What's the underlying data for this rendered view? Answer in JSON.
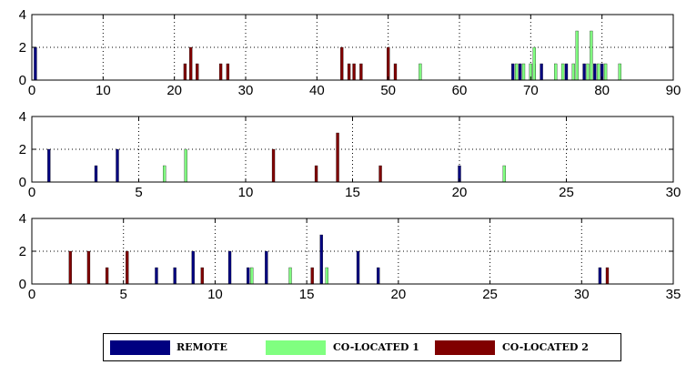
{
  "colors": {
    "remote": "#000080",
    "colocated1": "#80ff80",
    "colocated2": "#800000"
  },
  "legend": {
    "placement": "bottom-center",
    "items": [
      {
        "label": "REMOTE",
        "color": "#000080"
      },
      {
        "label": "CO-LOCATED 1",
        "color": "#80ff80"
      },
      {
        "label": "CO-LOCATED 2",
        "color": "#800000"
      }
    ]
  },
  "chart_data": [
    {
      "type": "bar",
      "xlim": [
        0,
        90
      ],
      "ylim": [
        0,
        4
      ],
      "xticks": [
        0,
        10,
        20,
        30,
        40,
        50,
        60,
        70,
        80,
        90
      ],
      "yticks": [
        0,
        2,
        4
      ],
      "grid": true,
      "series": [
        {
          "name": "REMOTE",
          "color": "#000080",
          "points": [
            [
              0.5,
              2
            ],
            [
              67.5,
              1
            ],
            [
              68.5,
              1
            ],
            [
              70.5,
              1
            ],
            [
              71.5,
              1
            ],
            [
              75,
              1
            ],
            [
              77.5,
              1
            ],
            [
              79,
              1
            ],
            [
              80,
              1
            ]
          ]
        },
        {
          "name": "CO-LOCATED 1",
          "color": "#80ff80",
          "points": [
            [
              54.5,
              1
            ],
            [
              68,
              1
            ],
            [
              69,
              1
            ],
            [
              70,
              1
            ],
            [
              70.5,
              2
            ],
            [
              73.5,
              1
            ],
            [
              74.5,
              1
            ],
            [
              76,
              1
            ],
            [
              76.5,
              3
            ],
            [
              78,
              1
            ],
            [
              78.5,
              3
            ],
            [
              79.5,
              1
            ],
            [
              80.5,
              1
            ],
            [
              82.5,
              1
            ]
          ]
        },
        {
          "name": "CO-LOCATED 2",
          "color": "#800000",
          "points": [
            [
              21.5,
              1
            ],
            [
              22.3,
              2
            ],
            [
              23.2,
              1
            ],
            [
              26.5,
              1
            ],
            [
              27.5,
              1
            ],
            [
              43.5,
              2
            ],
            [
              44.5,
              1
            ],
            [
              45.2,
              1
            ],
            [
              46.2,
              1
            ],
            [
              50,
              2
            ],
            [
              51,
              1
            ]
          ]
        }
      ]
    },
    {
      "type": "bar",
      "xlim": [
        0,
        30
      ],
      "ylim": [
        0,
        4
      ],
      "xticks": [
        0,
        5,
        10,
        15,
        20,
        25,
        30
      ],
      "yticks": [
        0,
        2,
        4
      ],
      "grid": true,
      "series": [
        {
          "name": "REMOTE",
          "color": "#000080",
          "points": [
            [
              0.8,
              2
            ],
            [
              3,
              1
            ],
            [
              4,
              2
            ],
            [
              20,
              1
            ]
          ]
        },
        {
          "name": "CO-LOCATED 1",
          "color": "#80ff80",
          "points": [
            [
              6.2,
              1
            ],
            [
              7.2,
              2
            ],
            [
              22.1,
              1
            ]
          ]
        },
        {
          "name": "CO-LOCATED 2",
          "color": "#800000",
          "points": [
            [
              11.3,
              2
            ],
            [
              13.3,
              1
            ],
            [
              14.3,
              3
            ],
            [
              16.3,
              1
            ]
          ]
        }
      ]
    },
    {
      "type": "bar",
      "xlim": [
        0,
        35
      ],
      "ylim": [
        0,
        4
      ],
      "xticks": [
        0,
        5,
        10,
        15,
        20,
        25,
        30,
        35
      ],
      "yticks": [
        0,
        2,
        4
      ],
      "grid": true,
      "series": [
        {
          "name": "REMOTE",
          "color": "#000080",
          "points": [
            [
              6.8,
              1
            ],
            [
              7.8,
              1
            ],
            [
              8.8,
              2
            ],
            [
              10.8,
              2
            ],
            [
              11.8,
              1
            ],
            [
              12.8,
              2
            ],
            [
              15.8,
              3
            ],
            [
              17.8,
              2
            ],
            [
              18.9,
              1
            ],
            [
              31,
              1
            ]
          ]
        },
        {
          "name": "CO-LOCATED 1",
          "color": "#80ff80",
          "points": [
            [
              12,
              1
            ],
            [
              14.1,
              1
            ],
            [
              16.1,
              1
            ]
          ]
        },
        {
          "name": "CO-LOCATED 2",
          "color": "#800000",
          "points": [
            [
              2.1,
              2
            ],
            [
              3.1,
              2
            ],
            [
              4.1,
              1
            ],
            [
              5.2,
              2
            ],
            [
              9.3,
              1
            ],
            [
              15.3,
              1
            ],
            [
              31.4,
              1
            ]
          ]
        }
      ]
    }
  ]
}
